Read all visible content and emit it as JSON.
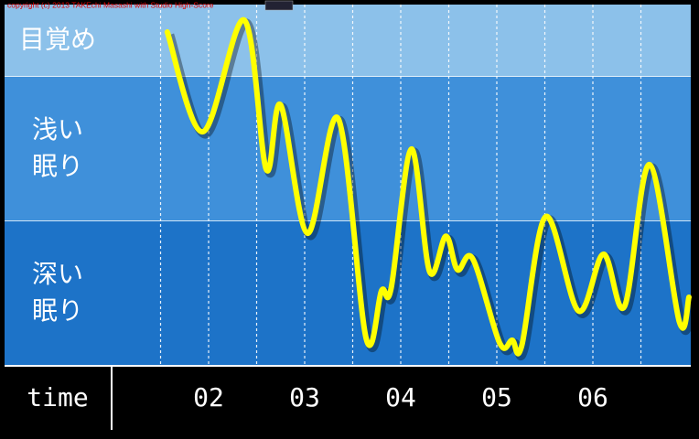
{
  "chart_data": {
    "type": "line",
    "copyright": "copyright (c) 2013 TAKEchi Masashi with Studio High-Score",
    "x_axis_label": "time",
    "bands": [
      {
        "from": 80,
        "to": 100,
        "label_lines": [
          "目覚め"
        ],
        "color": "#8cc1ea"
      },
      {
        "from": 40,
        "to": 80,
        "label_lines": [
          "浅い",
          "眠り"
        ],
        "color": "#3f90da"
      },
      {
        "from": 0,
        "to": 40,
        "label_lines": [
          "深い",
          "眠り"
        ],
        "color": "#1d73c8"
      }
    ],
    "xlim": [
      1,
      7
    ],
    "ylim": [
      0,
      100
    ],
    "xticks": [
      {
        "value": 2,
        "label": "02"
      },
      {
        "value": 3,
        "label": "03"
      },
      {
        "value": 4,
        "label": "04"
      },
      {
        "value": 5,
        "label": "05"
      },
      {
        "value": 6,
        "label": "06"
      }
    ],
    "xgrid": [
      1.5,
      2,
      2.5,
      3,
      3.5,
      4,
      4.5,
      5,
      5.5,
      6,
      6.5
    ],
    "series": [
      {
        "color": "#ffff00",
        "x": [
          1.57,
          1.94,
          2.37,
          2.6,
          2.75,
          3.03,
          3.35,
          3.64,
          3.8,
          3.9,
          4.11,
          4.3,
          4.47,
          4.59,
          4.75,
          5.03,
          5.16,
          5.26,
          5.51,
          5.85,
          6.11,
          6.33,
          6.59,
          6.9,
          7.0
        ],
        "values": [
          92.4,
          64.8,
          95.7,
          54.4,
          72.2,
          36.7,
          68.4,
          7.6,
          20.8,
          21.5,
          60,
          26.1,
          35.9,
          26.6,
          29.6,
          6.3,
          7.1,
          5.6,
          41.3,
          15.2,
          30.9,
          16.5,
          55.7,
          12.2,
          19
        ]
      }
    ]
  }
}
